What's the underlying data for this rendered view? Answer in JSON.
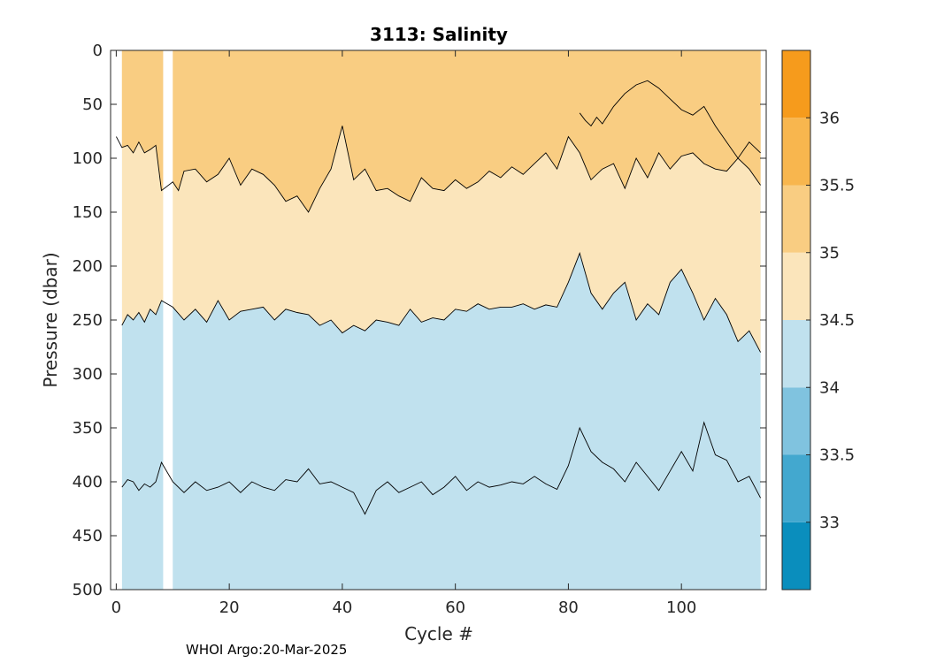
{
  "chart_data": {
    "type": "heatmap",
    "title": "3113:  Salinity",
    "xlabel": "Cycle #",
    "ylabel": "Pressure (dbar)",
    "xlim": [
      -1,
      115
    ],
    "ylim": [
      500,
      0
    ],
    "x_ticks": [
      0,
      20,
      40,
      60,
      80,
      100
    ],
    "y_ticks": [
      0,
      50,
      100,
      150,
      200,
      250,
      300,
      350,
      400,
      450,
      500
    ],
    "colorbar": {
      "range": [
        32.5,
        36.5
      ],
      "ticks": [
        33,
        33.5,
        34,
        34.5,
        35,
        35.5,
        36
      ],
      "levels": [
        {
          "from": 32.5,
          "to": 33.0,
          "color": "#0A8EBD"
        },
        {
          "from": 33.0,
          "to": 33.5,
          "color": "#43A8CF"
        },
        {
          "from": 33.5,
          "to": 34.0,
          "color": "#80C3DF"
        },
        {
          "from": 34.0,
          "to": 34.5,
          "color": "#C0E1EE"
        },
        {
          "from": 34.5,
          "to": 35.0,
          "color": "#FBE5BB"
        },
        {
          "from": 35.0,
          "to": 35.5,
          "color": "#F9CD82"
        },
        {
          "from": 35.5,
          "to": 36.0,
          "color": "#F8B64E"
        },
        {
          "from": 36.0,
          "to": 36.5,
          "color": "#F69B1C"
        }
      ]
    },
    "data_gaps_cycles": [
      [
        -1,
        1
      ],
      [
        8.3,
        10
      ]
    ],
    "contours": [
      {
        "level": 34.5,
        "x": [
          1,
          2,
          3,
          4,
          5,
          6,
          7,
          8,
          10,
          12,
          14,
          16,
          18,
          20,
          22,
          24,
          26,
          28,
          30,
          32,
          34,
          36,
          38,
          40,
          42,
          44,
          46,
          48,
          50,
          52,
          54,
          56,
          58,
          60,
          62,
          64,
          66,
          68,
          70,
          72,
          74,
          76,
          78,
          80,
          82,
          84,
          86,
          88,
          90,
          92,
          94,
          96,
          98,
          100,
          102,
          104,
          106,
          108,
          110,
          112,
          114
        ],
        "y": [
          255,
          245,
          250,
          243,
          252,
          240,
          245,
          232,
          238,
          250,
          240,
          252,
          232,
          250,
          242,
          240,
          238,
          250,
          240,
          243,
          245,
          255,
          250,
          262,
          255,
          260,
          250,
          252,
          255,
          240,
          252,
          248,
          250,
          240,
          242,
          235,
          240,
          238,
          238,
          235,
          240,
          236,
          238,
          215,
          188,
          225,
          240,
          225,
          215,
          250,
          235,
          245,
          215,
          203,
          225,
          250,
          230,
          245,
          270,
          260,
          280
        ]
      },
      {
        "level": 34.0,
        "x": [
          1,
          2,
          3,
          4,
          5,
          6,
          7,
          8,
          10,
          12,
          14,
          16,
          18,
          20,
          22,
          24,
          26,
          28,
          30,
          32,
          34,
          36,
          38,
          40,
          42,
          44,
          46,
          48,
          50,
          52,
          54,
          56,
          58,
          60,
          62,
          64,
          66,
          68,
          70,
          72,
          74,
          76,
          78,
          80,
          82,
          84,
          86,
          88,
          90,
          92,
          94,
          96,
          98,
          100,
          102,
          104,
          106,
          108,
          110,
          112,
          114
        ],
        "y": [
          405,
          398,
          400,
          408,
          402,
          405,
          400,
          382,
          400,
          410,
          400,
          408,
          405,
          400,
          410,
          400,
          405,
          408,
          398,
          400,
          388,
          402,
          400,
          405,
          410,
          430,
          408,
          400,
          410,
          405,
          400,
          412,
          405,
          395,
          408,
          400,
          405,
          403,
          400,
          402,
          395,
          402,
          407,
          385,
          350,
          372,
          382,
          388,
          400,
          382,
          395,
          408,
          390,
          372,
          390,
          345,
          375,
          380,
          400,
          395,
          415
        ]
      },
      {
        "level": 35.0,
        "x": [
          0,
          1,
          2,
          3,
          4,
          5,
          6,
          7,
          8,
          10,
          11,
          12,
          14,
          16,
          18,
          20,
          22,
          24,
          26,
          28,
          30,
          32,
          34,
          36,
          38,
          40,
          42,
          44,
          46,
          48,
          50,
          52,
          54,
          56,
          58,
          60,
          62,
          64,
          66,
          68,
          70,
          72,
          74,
          76,
          78,
          80,
          82,
          84,
          86,
          88,
          90,
          92,
          94,
          96,
          98,
          100,
          102,
          104,
          106,
          108,
          110,
          112,
          114
        ],
        "y": [
          80,
          90,
          88,
          95,
          85,
          95,
          92,
          88,
          130,
          122,
          130,
          112,
          110,
          122,
          115,
          100,
          125,
          110,
          115,
          125,
          140,
          135,
          150,
          128,
          110,
          70,
          120,
          110,
          130,
          128,
          135,
          140,
          118,
          128,
          130,
          120,
          128,
          122,
          112,
          118,
          108,
          115,
          105,
          95,
          110,
          80,
          95,
          120,
          110,
          105,
          128,
          100,
          118,
          95,
          110,
          98,
          95,
          105,
          110,
          112,
          100,
          110,
          125
        ]
      },
      {
        "level": 35.5,
        "x": [
          82,
          83,
          84,
          85,
          86,
          88,
          90,
          92,
          94,
          96,
          98,
          100,
          102,
          104,
          106,
          108,
          110,
          112,
          114
        ],
        "y": [
          58,
          65,
          70,
          62,
          68,
          52,
          40,
          32,
          28,
          35,
          45,
          55,
          60,
          52,
          70,
          85,
          100,
          85,
          95
        ]
      }
    ]
  },
  "footer": "WHOI Argo:20-Mar-2025"
}
